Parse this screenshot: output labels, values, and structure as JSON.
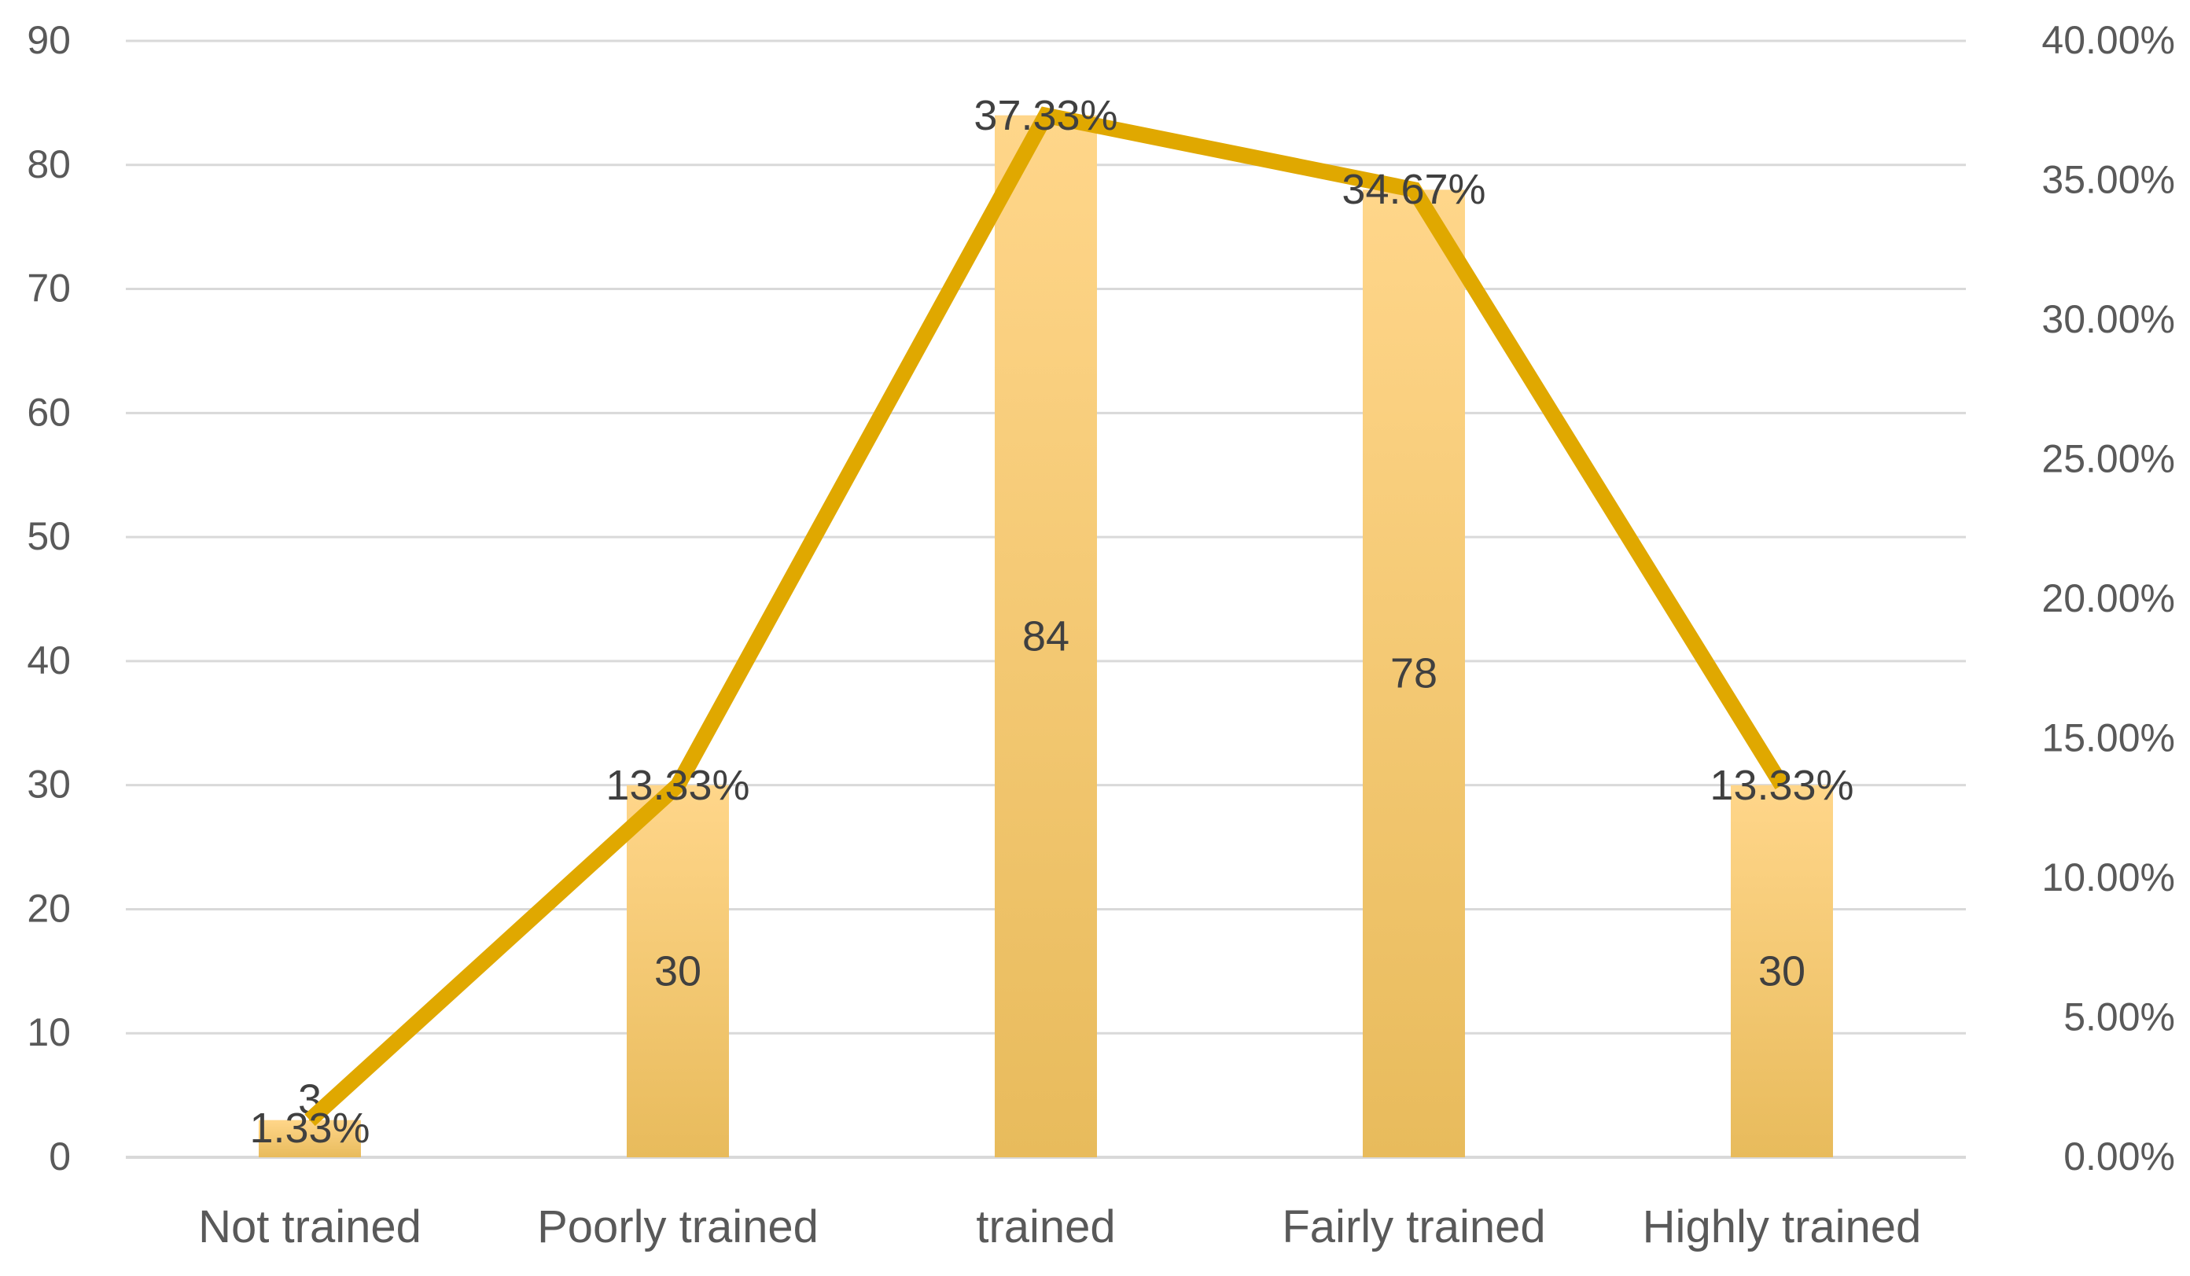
{
  "chart_data": {
    "type": "bar",
    "categories": [
      "Not trained",
      "Poorly trained",
      "trained",
      "Fairly trained",
      "Highly trained"
    ],
    "series": [
      {
        "type": "bar",
        "axis": "left",
        "values": [
          3,
          30,
          84,
          78,
          30
        ],
        "labels": [
          "3",
          "30",
          "84",
          "78",
          "30"
        ],
        "color_top": "#ffd68a",
        "color_bottom": "#e8bb5c"
      },
      {
        "type": "line",
        "axis": "right",
        "values": [
          1.33,
          13.33,
          37.33,
          34.67,
          13.33
        ],
        "labels": [
          "1.33%",
          "13.33%",
          "37.33%",
          "34.67%",
          "13.33%"
        ],
        "color": "#e0a800"
      }
    ],
    "y_left": {
      "min": 0,
      "max": 90,
      "step": 10,
      "ticks": [
        "0",
        "10",
        "20",
        "30",
        "40",
        "50",
        "60",
        "70",
        "80",
        "90"
      ]
    },
    "y_right": {
      "min": 0,
      "max": 40,
      "step": 5,
      "ticks": [
        "0.00%",
        "5.00%",
        "10.00%",
        "15.00%",
        "20.00%",
        "25.00%",
        "30.00%",
        "35.00%",
        "40.00%"
      ]
    },
    "grid": true,
    "grid_color": "#d9d9d9",
    "text_color": "#595959",
    "label_color": "#404040",
    "legend": "none"
  }
}
